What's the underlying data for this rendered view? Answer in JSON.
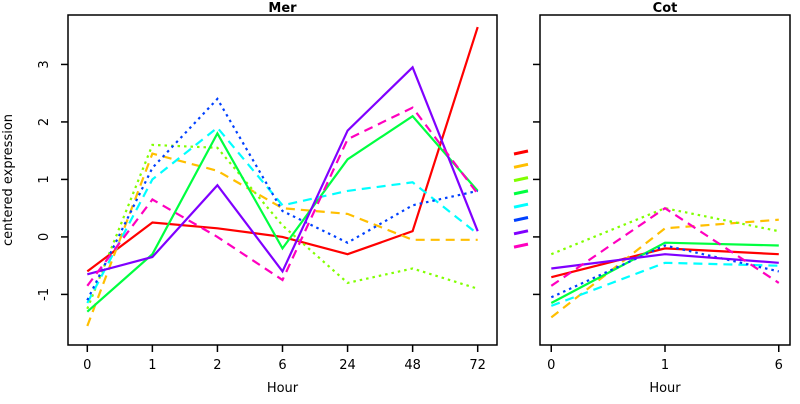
{
  "figure": {
    "background": "#ffffff",
    "axis_color": "#000000",
    "ylabel": "centered expression"
  },
  "legend": {
    "position": "between-panels",
    "items": [
      {
        "name": "red",
        "color": "#FF0000",
        "linetype": "solid"
      },
      {
        "name": "orange",
        "color": "#FFBF00",
        "linetype": "dashed"
      },
      {
        "name": "yellow-green",
        "color": "#80FF00",
        "linetype": "dotted"
      },
      {
        "name": "green",
        "color": "#00FF40",
        "linetype": "solid"
      },
      {
        "name": "cyan",
        "color": "#00FFFF",
        "linetype": "dashed"
      },
      {
        "name": "blue",
        "color": "#0040FF",
        "linetype": "dotted"
      },
      {
        "name": "purple",
        "color": "#8000FF",
        "linetype": "solid"
      },
      {
        "name": "magenta",
        "color": "#FF00BF",
        "linetype": "dashed"
      }
    ]
  },
  "chart_data": [
    {
      "type": "line",
      "title": "Mer",
      "xlabel": "Hour",
      "ylabel": "centered expression",
      "x_ticklabels": [
        "0",
        "1",
        "2",
        "6",
        "24",
        "48",
        "72"
      ],
      "y_ticks": [
        "-1",
        "0",
        "1",
        "2",
        "3"
      ],
      "y_tick_values": [
        -1,
        0,
        1,
        2,
        3
      ],
      "ylim": [
        -1.88,
        3.86
      ],
      "show_y_labels": true,
      "grid": false,
      "series": [
        {
          "name": "red",
          "color": "#FF0000",
          "linetype": "solid",
          "values": [
            -0.6,
            0.25,
            0.15,
            0.0,
            -0.3,
            0.1,
            3.65
          ]
        },
        {
          "name": "orange",
          "color": "#FFBF00",
          "linetype": "dashed",
          "values": [
            -1.55,
            1.45,
            1.15,
            0.5,
            0.4,
            -0.05,
            -0.05
          ]
        },
        {
          "name": "yellow-green",
          "color": "#80FF00",
          "linetype": "dotted",
          "values": [
            -1.25,
            1.6,
            1.55,
            0.2,
            -0.8,
            -0.55,
            -0.9
          ]
        },
        {
          "name": "green",
          "color": "#00FF40",
          "linetype": "solid",
          "values": [
            -1.3,
            -0.3,
            1.8,
            -0.2,
            1.35,
            2.1,
            0.8
          ]
        },
        {
          "name": "cyan",
          "color": "#00FFFF",
          "linetype": "dashed",
          "values": [
            -1.15,
            1.0,
            1.9,
            0.55,
            0.8,
            0.95,
            0.05
          ]
        },
        {
          "name": "blue",
          "color": "#0040FF",
          "linetype": "dotted",
          "values": [
            -1.1,
            1.2,
            2.4,
            0.45,
            -0.1,
            0.55,
            0.8
          ]
        },
        {
          "name": "purple",
          "color": "#8000FF",
          "linetype": "solid",
          "values": [
            -0.65,
            -0.35,
            0.9,
            -0.6,
            1.85,
            2.95,
            0.1
          ]
        },
        {
          "name": "magenta",
          "color": "#FF00BF",
          "linetype": "dashed",
          "values": [
            -0.85,
            0.65,
            0.0,
            -0.75,
            1.7,
            2.25,
            0.75
          ]
        }
      ]
    },
    {
      "type": "line",
      "title": "Cot",
      "xlabel": "Hour",
      "x_ticklabels": [
        "0",
        "1",
        "6"
      ],
      "y_ticks": [
        "-1",
        "0",
        "1",
        "2",
        "3"
      ],
      "y_tick_values": [
        -1,
        0,
        1,
        2,
        3
      ],
      "ylim": [
        -1.88,
        3.86
      ],
      "show_y_labels": false,
      "grid": false,
      "series": [
        {
          "name": "red",
          "color": "#FF0000",
          "linetype": "solid",
          "values": [
            -0.7,
            -0.2,
            -0.3
          ]
        },
        {
          "name": "orange",
          "color": "#FFBF00",
          "linetype": "dashed",
          "values": [
            -1.4,
            0.15,
            0.3
          ]
        },
        {
          "name": "yellow-green",
          "color": "#80FF00",
          "linetype": "dotted",
          "values": [
            -0.3,
            0.5,
            0.1
          ]
        },
        {
          "name": "green",
          "color": "#00FF40",
          "linetype": "solid",
          "values": [
            -1.15,
            -0.1,
            -0.15
          ]
        },
        {
          "name": "cyan",
          "color": "#00FFFF",
          "linetype": "dashed",
          "values": [
            -1.2,
            -0.45,
            -0.5
          ]
        },
        {
          "name": "blue",
          "color": "#0040FF",
          "linetype": "dotted",
          "values": [
            -1.05,
            -0.15,
            -0.6
          ]
        },
        {
          "name": "purple",
          "color": "#8000FF",
          "linetype": "solid",
          "values": [
            -0.55,
            -0.3,
            -0.45
          ]
        },
        {
          "name": "magenta",
          "color": "#FF00BF",
          "linetype": "dashed",
          "values": [
            -0.85,
            0.5,
            -0.8
          ]
        }
      ]
    }
  ]
}
